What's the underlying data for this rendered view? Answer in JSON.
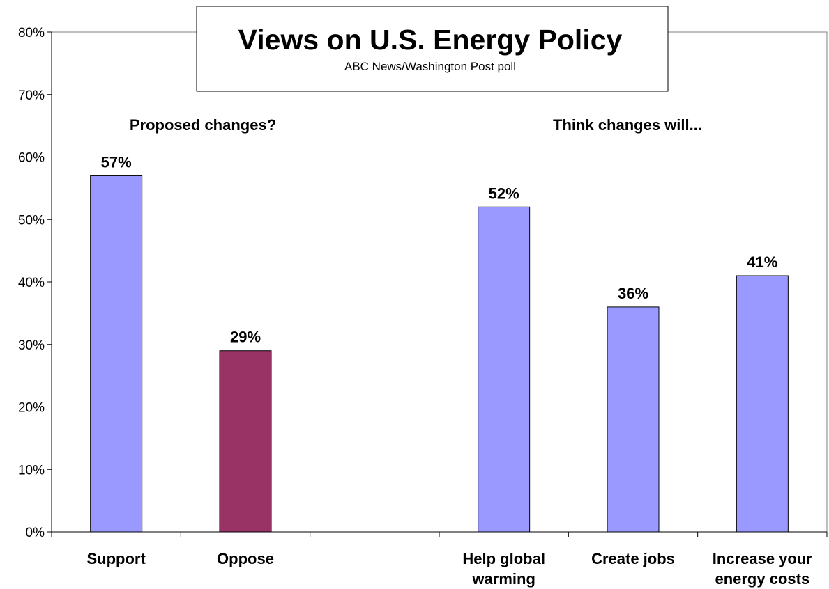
{
  "chart_data": {
    "type": "bar",
    "title": "Views on U.S. Energy Policy",
    "subtitle": "ABC News/Washington Post poll",
    "xlabel": "",
    "ylabel": "",
    "ylim": [
      0,
      80
    ],
    "y_ticks": [
      "0%",
      "10%",
      "20%",
      "30%",
      "40%",
      "50%",
      "60%",
      "70%",
      "80%"
    ],
    "grid": false,
    "legend": "none",
    "group_labels": [
      "Proposed changes?",
      "Think changes will..."
    ],
    "categories": [
      "Support",
      "Oppose",
      "",
      "Help global warming",
      "Create jobs",
      "Increase your energy costs"
    ],
    "category_lines": [
      [
        "Support"
      ],
      [
        "Oppose"
      ],
      [],
      [
        "Help global",
        "warming"
      ],
      [
        "Create jobs"
      ],
      [
        "Increase your",
        "energy costs"
      ]
    ],
    "values": [
      57,
      29,
      null,
      52,
      36,
      41
    ],
    "value_labels": [
      "57%",
      "29%",
      "",
      "52%",
      "36%",
      "41%"
    ],
    "colors": [
      "#9999ff",
      "#993366",
      null,
      "#9999ff",
      "#9999ff",
      "#9999ff"
    ]
  }
}
